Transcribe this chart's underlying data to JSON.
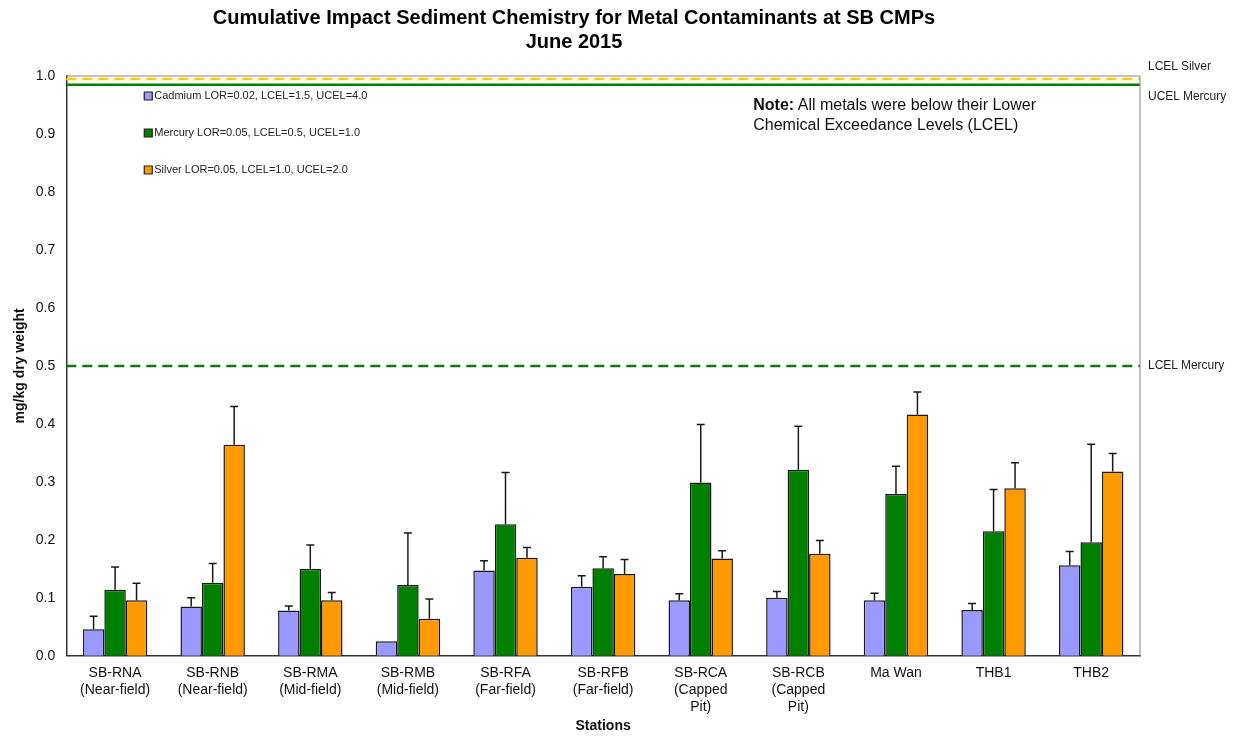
{
  "chart_data": {
    "type": "bar",
    "title": "Cumulative Impact Sediment Chemistry for Metal Contaminants at SB CMPs\nJune 2015",
    "xlabel": "Stations",
    "ylabel": "mg/kg dry weight",
    "categories": [
      "SB-RNA\n(Near-field)",
      "SB-RNB\n(Near-field)",
      "SB-RMA\n(Mid-field)",
      "SB-RMB\n(Mid-field)",
      "SB-RFA\n(Far-field)",
      "SB-RFB\n(Far-field)",
      "SB-RCA\n(Capped\nPit)",
      "SB-RCB\n(Capped\nPit)",
      "Ma Wan",
      "THB1",
      "THB2"
    ],
    "series": [
      {
        "name": "Cadmium LOR=0.02, LCEL=1.5, UCEL=4.0",
        "color": "#9999ff",
        "values": [
          0.046,
          0.085,
          0.078,
          0.025,
          0.147,
          0.119,
          0.096,
          0.1,
          0.096,
          0.079,
          0.156
        ],
        "errors": [
          [
            0.046,
            0.068
          ],
          [
            0.085,
            0.1
          ],
          [
            0.078,
            0.086
          ],
          null,
          [
            0.147,
            0.164
          ],
          [
            0.119,
            0.138
          ],
          [
            0.096,
            0.107
          ],
          [
            0.1,
            0.111
          ],
          [
            0.096,
            0.108
          ],
          [
            0.079,
            0.09
          ],
          [
            0.156,
            0.18
          ]
        ]
      },
      {
        "name": "Mercury LOR=0.05, LCEL=0.5, UCEL=1.0",
        "color": "#008000",
        "values": [
          0.114,
          0.126,
          0.15,
          0.122,
          0.227,
          0.151,
          0.299,
          0.321,
          0.279,
          0.215,
          0.196
        ],
        "errors": [
          [
            0.114,
            0.153
          ],
          [
            0.126,
            0.159
          ],
          [
            0.15,
            0.191
          ],
          [
            0.122,
            0.212
          ],
          [
            0.227,
            0.316
          ],
          [
            0.151,
            0.171
          ],
          [
            0.299,
            0.399
          ],
          [
            0.321,
            0.396
          ],
          [
            0.279,
            0.327
          ],
          [
            0.215,
            0.287
          ],
          [
            0.196,
            0.365
          ]
        ]
      },
      {
        "name": "Silver LOR=0.05, LCEL=1.0, UCEL=2.0",
        "color": "#ff9900",
        "values": [
          0.096,
          0.364,
          0.096,
          0.064,
          0.169,
          0.141,
          0.168,
          0.176,
          0.416,
          0.289,
          0.318
        ],
        "errors": [
          [
            0.096,
            0.125
          ],
          [
            0.364,
            0.43
          ],
          [
            0.096,
            0.109
          ],
          [
            0.064,
            0.098
          ],
          [
            0.169,
            0.187
          ],
          [
            0.141,
            0.166
          ],
          [
            0.168,
            0.181
          ],
          [
            0.176,
            0.199
          ],
          [
            0.416,
            0.455
          ],
          [
            0.289,
            0.333
          ],
          [
            0.318,
            0.349
          ]
        ]
      }
    ],
    "ylim": [
      0,
      1
    ],
    "yticks": [
      {
        "value": 0,
        "label": "0.0"
      },
      {
        "value": 0.1,
        "label": "0.1"
      },
      {
        "value": 0.2,
        "label": "0.2"
      },
      {
        "value": 0.3,
        "label": "0.3"
      },
      {
        "value": 0.4,
        "label": "0.4"
      },
      {
        "value": 0.5,
        "label": "0.5"
      },
      {
        "value": 0.6,
        "label": "0.6"
      },
      {
        "value": 0.7,
        "label": "0.7"
      },
      {
        "value": 0.8,
        "label": "0.8"
      },
      {
        "value": 0.9,
        "label": "0.9"
      },
      {
        "value": 1,
        "label": "1.0"
      }
    ],
    "ref_lines": [
      {
        "axis": "y",
        "value": 0.995,
        "label": "LCEL Silver",
        "color": "#ffcc00",
        "line_style": "dashed"
      },
      {
        "axis": "y",
        "value": 0.985,
        "label": "UCEL Mercury",
        "color": "#008000",
        "line_style": "solid"
      },
      {
        "axis": "y",
        "value": 0.5,
        "label": "LCEL Mercury",
        "color": "#008000",
        "line_style": "dashed"
      }
    ],
    "annotations": [
      "Note: All metals were below their Lower\nChemical Exceedance Levels (LCEL)"
    ],
    "legend": "top left",
    "grid": false
  }
}
